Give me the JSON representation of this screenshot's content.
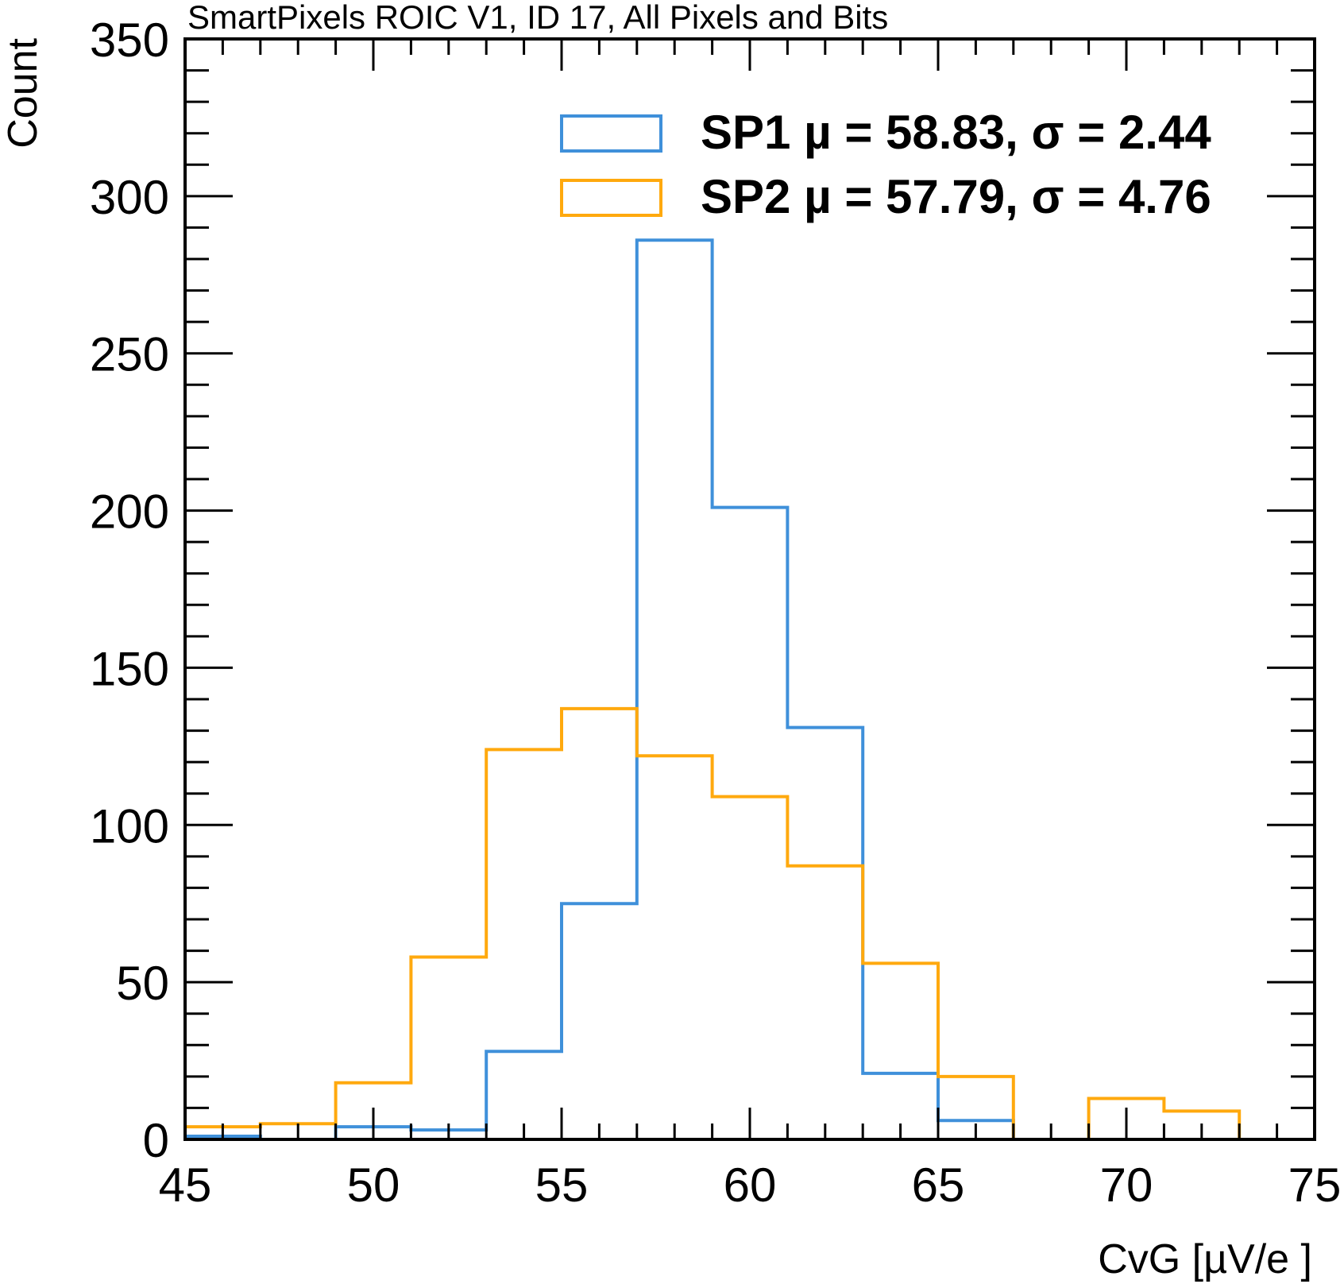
{
  "chart_data": {
    "type": "histogram",
    "title": "SmartPixels ROIC V1, ID 17, All Pixels and Bits",
    "xlabel": "CvG [µV/e ]",
    "ylabel": "Count",
    "xlim": [
      45,
      75
    ],
    "ylim": [
      0,
      350
    ],
    "xticks": [
      "45",
      "50",
      "55",
      "60",
      "65",
      "70",
      "75"
    ],
    "yticks": [
      "0",
      "50",
      "100",
      "150",
      "200",
      "250",
      "300",
      "350"
    ],
    "bin_edges": [
      45,
      47,
      49,
      51,
      53,
      55,
      57,
      59,
      61,
      63,
      65,
      67,
      69,
      71,
      73
    ],
    "series": [
      {
        "name": "SP1 µ = 58.83, σ = 2.44",
        "color": "#3f90da",
        "values": [
          1,
          0,
          4,
          3,
          28,
          75,
          286,
          201,
          131,
          21,
          6,
          0,
          0,
          0
        ]
      },
      {
        "name": "SP2 µ = 57.79, σ = 4.76",
        "color": "#ffa90e",
        "values": [
          4,
          5,
          18,
          58,
          124,
          137,
          122,
          109,
          87,
          56,
          20,
          0,
          13,
          9
        ]
      }
    ],
    "legend": "top-right",
    "grid": false
  }
}
